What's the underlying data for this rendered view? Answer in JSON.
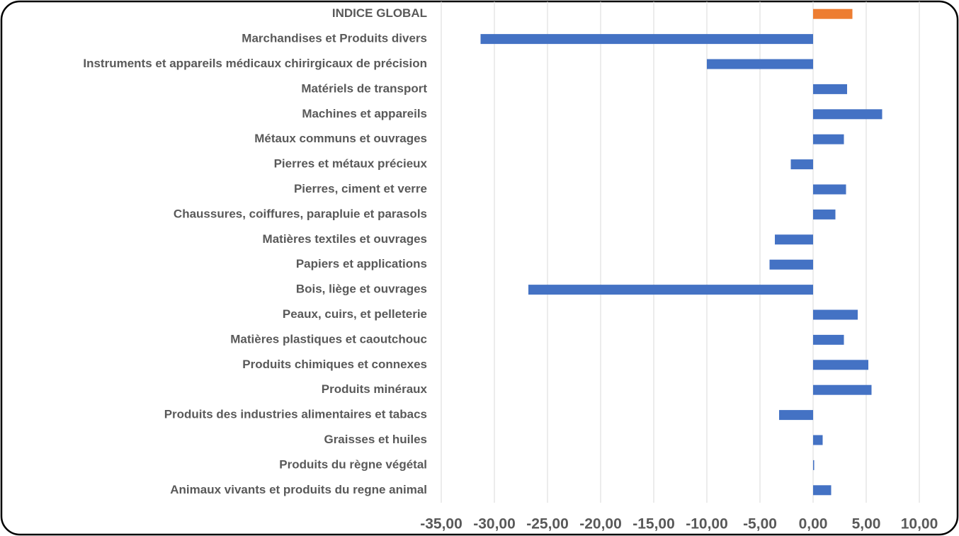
{
  "chart_data": {
    "type": "bar",
    "orientation": "horizontal",
    "categories": [
      "INDICE GLOBAL",
      "Marchandises et Produits divers",
      "Instruments et appareils médicaux chirirgicaux de précision",
      "Matériels de transport",
      "Machines et appareils",
      "Métaux communs et ouvrages",
      "Pierres et métaux précieux",
      "Pierres, ciment et verre",
      "Chaussures, coiffures, parapluie et parasols",
      "Matières textiles et ouvrages",
      "Papiers et applications",
      "Bois, liège et ouvrages",
      "Peaux, cuirs, et pelleterie",
      "Matières plastiques et caoutchouc",
      "Produits chimiques et connexes",
      "Produits minéraux",
      "Produits des industries alimentaires et tabacs",
      "Graisses et huiles",
      "Produits du règne végétal",
      "Animaux vivants et produits du regne animal"
    ],
    "values": [
      3.7,
      -31.3,
      -10.0,
      3.2,
      6.5,
      2.9,
      -2.1,
      3.1,
      2.1,
      -3.6,
      -4.1,
      -26.8,
      4.2,
      2.9,
      5.2,
      5.5,
      -3.2,
      0.9,
      0.1,
      1.7
    ],
    "colors": [
      "#ed7d31",
      "#4472c4",
      "#4472c4",
      "#4472c4",
      "#4472c4",
      "#4472c4",
      "#4472c4",
      "#4472c4",
      "#4472c4",
      "#4472c4",
      "#4472c4",
      "#4472c4",
      "#4472c4",
      "#4472c4",
      "#4472c4",
      "#4472c4",
      "#4472c4",
      "#4472c4",
      "#4472c4",
      "#4472c4"
    ],
    "xlim": [
      -35,
      10
    ],
    "xticks": [
      {
        "value": -35,
        "label": "-35,00"
      },
      {
        "value": -30,
        "label": "-30,00"
      },
      {
        "value": -25,
        "label": "-25,00"
      },
      {
        "value": -20,
        "label": "-20,00"
      },
      {
        "value": -15,
        "label": "-15,00"
      },
      {
        "value": -10,
        "label": "-10,00"
      },
      {
        "value": -5,
        "label": "-5,00"
      },
      {
        "value": 0,
        "label": "0,00"
      },
      {
        "value": 5,
        "label": "5,00"
      },
      {
        "value": 10,
        "label": "10,00"
      }
    ],
    "grid": true
  }
}
